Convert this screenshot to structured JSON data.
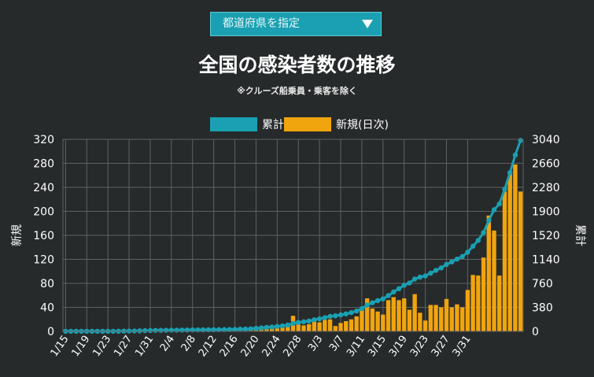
{
  "selector": {
    "label": "都道府県を指定",
    "icon": "triangle-down-icon"
  },
  "title": "全国の感染者数の推移",
  "subtitle": "※クルーズ船乗員・乗客を除く",
  "colors": {
    "background": "#272a2b",
    "cumulative": "#1aa0b2",
    "new": "#f0a40e",
    "grid": "#5f6263",
    "axis": "#ffffff"
  },
  "chart_data": {
    "type": "bar",
    "legend": {
      "position": "top-center",
      "items": [
        {
          "name": "累計",
          "color": "#1aa0b2"
        },
        {
          "name": "新規(日次)",
          "color": "#f0a40e"
        }
      ]
    },
    "x_tick_labels": [
      "1/15",
      "1/19",
      "1/23",
      "1/27",
      "1/31",
      "2/4",
      "2/8",
      "2/12",
      "2/16",
      "2/20",
      "2/24",
      "2/28",
      "3/3",
      "3/7",
      "3/11",
      "3/15",
      "3/19",
      "3/23",
      "3/27",
      "3/31"
    ],
    "x_tick_step": 4,
    "ylabel_left": "新規",
    "ylabel_right": "累計",
    "ylim_left": [
      0,
      320
    ],
    "ylim_right": [
      0,
      3040
    ],
    "yticks_left": [
      0,
      40,
      80,
      120,
      160,
      200,
      240,
      280,
      320
    ],
    "yticks_right": [
      0,
      380,
      760,
      1140,
      1520,
      1900,
      2280,
      2660,
      3040
    ],
    "grid": true,
    "series": [
      {
        "name": "新規(日次)",
        "type": "bar",
        "axis": "left",
        "values": [
          1,
          0,
          0,
          0,
          0,
          0,
          0,
          0,
          0,
          0,
          1,
          1,
          2,
          1,
          2,
          3,
          2,
          2,
          1,
          1,
          2,
          0,
          1,
          1,
          2,
          0,
          1,
          1,
          1,
          1,
          1,
          1,
          2,
          4,
          2,
          3,
          8,
          7,
          8,
          6,
          10,
          8,
          13,
          26,
          15,
          10,
          12,
          20,
          15,
          19,
          20,
          9,
          14,
          17,
          20,
          25,
          38,
          55,
          38,
          33,
          28,
          52,
          57,
          52,
          55,
          36,
          62,
          31,
          18,
          44,
          44,
          40,
          54,
          40,
          45,
          40,
          69,
          94,
          93,
          123,
          193,
          168,
          93,
          233,
          262,
          278,
          233
        ]
      },
      {
        "name": "累計",
        "type": "line",
        "axis": "right",
        "values": [
          1,
          1,
          1,
          1,
          1,
          1,
          1,
          1,
          1,
          1,
          2,
          3,
          5,
          6,
          8,
          11,
          13,
          15,
          16,
          17,
          19,
          19,
          20,
          21,
          23,
          23,
          24,
          25,
          26,
          27,
          28,
          29,
          31,
          35,
          37,
          40,
          48,
          55,
          63,
          69,
          79,
          87,
          100,
          126,
          141,
          151,
          163,
          183,
          198,
          217,
          237,
          246,
          260,
          277,
          297,
          322,
          360,
          415,
          453,
          486,
          514,
          566,
          623,
          675,
          730,
          766,
          828,
          859,
          877,
          921,
          965,
          1005,
          1059,
          1099,
          1144,
          1184,
          1253,
          1347,
          1440,
          1563,
          1756,
          1924,
          2017,
          2250,
          2512,
          2790,
          3023
        ]
      }
    ]
  }
}
